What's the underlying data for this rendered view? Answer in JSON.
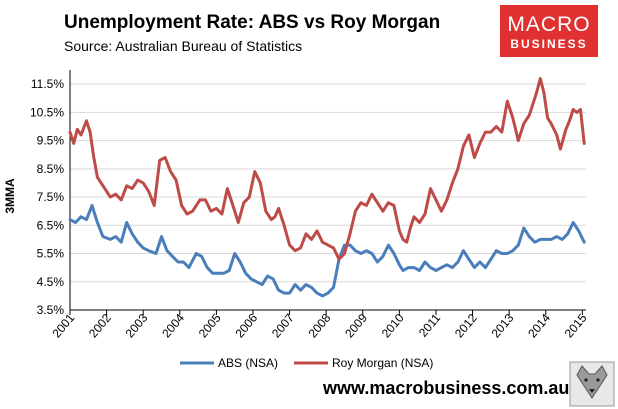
{
  "chart_data": {
    "type": "line",
    "title": "Unemployment Rate: ABS vs Roy Morgan",
    "subtitle": "Source: Australian Bureau of Statistics",
    "ylabel": "3MMA",
    "xlabel": "",
    "ylim": [
      3.5,
      12.0
    ],
    "yticks": [
      3.5,
      4.5,
      5.5,
      6.5,
      7.5,
      8.5,
      9.5,
      10.5,
      11.5
    ],
    "ytick_labels": [
      "3.5%",
      "4.5%",
      "5.5%",
      "6.5%",
      "7.5%",
      "8.5%",
      "9.5%",
      "10.5%",
      "11.5%"
    ],
    "xlim": [
      2001.0,
      2015.1
    ],
    "xticks": [
      2001,
      2002,
      2003,
      2004,
      2005,
      2006,
      2007,
      2008,
      2009,
      2010,
      2011,
      2012,
      2013,
      2014,
      2015
    ],
    "xtick_labels": [
      "2001",
      "2002",
      "2003",
      "2004",
      "2005",
      "2006",
      "2007",
      "2008",
      "2009",
      "2010",
      "2011",
      "2012",
      "2013",
      "2014",
      "2015"
    ],
    "legend": "bottom",
    "series": [
      {
        "name": "ABS (NSA)",
        "color": "#4a7ebb",
        "x": [
          2001.0,
          2001.15,
          2001.3,
          2001.45,
          2001.6,
          2001.75,
          2001.9,
          2002.1,
          2002.25,
          2002.4,
          2002.55,
          2002.7,
          2002.85,
          2003.0,
          2003.15,
          2003.35,
          2003.5,
          2003.65,
          2003.8,
          2003.95,
          2004.1,
          2004.25,
          2004.45,
          2004.6,
          2004.75,
          2004.9,
          2005.05,
          2005.2,
          2005.35,
          2005.5,
          2005.65,
          2005.8,
          2005.95,
          2006.1,
          2006.25,
          2006.4,
          2006.55,
          2006.7,
          2006.85,
          2007.0,
          2007.15,
          2007.3,
          2007.45,
          2007.6,
          2007.75,
          2007.9,
          2008.05,
          2008.2,
          2008.35,
          2008.5,
          2008.65,
          2008.8,
          2008.95,
          2009.1,
          2009.25,
          2009.4,
          2009.55,
          2009.7,
          2009.85,
          2010.0,
          2010.1,
          2010.25,
          2010.4,
          2010.55,
          2010.7,
          2010.85,
          2011.0,
          2011.15,
          2011.3,
          2011.45,
          2011.6,
          2011.75,
          2011.9,
          2012.05,
          2012.2,
          2012.35,
          2012.5,
          2012.65,
          2012.8,
          2012.95,
          2013.1,
          2013.25,
          2013.4,
          2013.55,
          2013.7,
          2013.85,
          2014.0,
          2014.15,
          2014.3,
          2014.45,
          2014.6,
          2014.75,
          2014.9,
          2015.05
        ],
        "values": [
          6.7,
          6.6,
          6.8,
          6.7,
          7.2,
          6.6,
          6.1,
          6.0,
          6.1,
          5.9,
          6.6,
          6.2,
          5.9,
          5.7,
          5.6,
          5.5,
          6.1,
          5.6,
          5.4,
          5.2,
          5.2,
          5.0,
          5.5,
          5.4,
          5.0,
          4.8,
          4.8,
          4.8,
          4.9,
          5.5,
          5.2,
          4.8,
          4.6,
          4.5,
          4.4,
          4.7,
          4.6,
          4.2,
          4.1,
          4.1,
          4.4,
          4.2,
          4.4,
          4.3,
          4.1,
          4.0,
          4.1,
          4.3,
          5.3,
          5.8,
          5.8,
          5.6,
          5.5,
          5.6,
          5.5,
          5.2,
          5.4,
          5.8,
          5.5,
          5.1,
          4.9,
          5.0,
          5.0,
          4.9,
          5.2,
          5.0,
          4.9,
          5.0,
          5.1,
          5.0,
          5.2,
          5.6,
          5.3,
          5.0,
          5.2,
          5.0,
          5.3,
          5.6,
          5.5,
          5.5,
          5.6,
          5.8,
          6.4,
          6.1,
          5.9,
          6.0,
          6.0,
          6.0,
          6.1,
          6.0,
          6.2,
          6.6,
          6.3,
          5.9
        ]
      },
      {
        "name": "Roy Morgan (NSA)",
        "color": "#be4b48",
        "x": [
          2001.0,
          2001.1,
          2001.2,
          2001.3,
          2001.45,
          2001.55,
          2001.65,
          2001.75,
          2001.85,
          2001.95,
          2002.1,
          2002.25,
          2002.4,
          2002.55,
          2002.7,
          2002.85,
          2003.0,
          2003.15,
          2003.3,
          2003.45,
          2003.6,
          2003.75,
          2003.9,
          2004.05,
          2004.2,
          2004.35,
          2004.55,
          2004.7,
          2004.85,
          2005.0,
          2005.15,
          2005.3,
          2005.45,
          2005.6,
          2005.75,
          2005.9,
          2006.05,
          2006.2,
          2006.35,
          2006.5,
          2006.6,
          2006.7,
          2006.85,
          2007.0,
          2007.15,
          2007.3,
          2007.45,
          2007.6,
          2007.75,
          2007.9,
          2008.05,
          2008.2,
          2008.35,
          2008.5,
          2008.65,
          2008.8,
          2008.95,
          2009.1,
          2009.25,
          2009.4,
          2009.55,
          2009.7,
          2009.85,
          2010.0,
          2010.1,
          2010.2,
          2010.3,
          2010.4,
          2010.55,
          2010.7,
          2010.85,
          2011.0,
          2011.15,
          2011.3,
          2011.45,
          2011.6,
          2011.75,
          2011.9,
          2012.05,
          2012.2,
          2012.35,
          2012.5,
          2012.65,
          2012.8,
          2012.95,
          2013.1,
          2013.25,
          2013.4,
          2013.55,
          2013.65,
          2013.75,
          2013.85,
          2013.95,
          2014.05,
          2014.15,
          2014.3,
          2014.4,
          2014.55,
          2014.65,
          2014.75,
          2014.85,
          2014.95,
          2015.05
        ],
        "values": [
          9.8,
          9.4,
          9.9,
          9.7,
          10.2,
          9.8,
          8.9,
          8.2,
          8.0,
          7.8,
          7.5,
          7.6,
          7.4,
          7.9,
          7.8,
          8.1,
          8.0,
          7.7,
          7.2,
          8.8,
          8.9,
          8.4,
          8.1,
          7.2,
          6.9,
          7.0,
          7.4,
          7.4,
          7.0,
          7.1,
          6.9,
          7.8,
          7.2,
          6.6,
          7.3,
          7.5,
          8.4,
          8.0,
          7.0,
          6.7,
          6.8,
          7.1,
          6.5,
          5.8,
          5.6,
          5.7,
          6.2,
          6.0,
          6.3,
          5.9,
          5.8,
          5.7,
          5.3,
          5.5,
          6.2,
          7.0,
          7.3,
          7.2,
          7.6,
          7.3,
          7.0,
          7.3,
          7.2,
          6.3,
          6.0,
          5.9,
          6.4,
          6.8,
          6.6,
          6.9,
          7.8,
          7.4,
          7.0,
          7.4,
          8.0,
          8.5,
          9.3,
          9.7,
          8.9,
          9.4,
          9.8,
          9.8,
          10.0,
          9.8,
          10.9,
          10.3,
          9.5,
          10.1,
          10.4,
          10.8,
          11.2,
          11.7,
          11.2,
          10.3,
          10.1,
          9.7,
          9.2,
          9.9,
          10.2,
          10.6,
          10.5,
          10.6,
          9.4
        ]
      }
    ]
  },
  "logo": {
    "line1": "MACRO",
    "line2": "BUSINESS",
    "bg_color": "#e03030"
  },
  "footer": {
    "website": "www.macrobusiness.com.au"
  }
}
